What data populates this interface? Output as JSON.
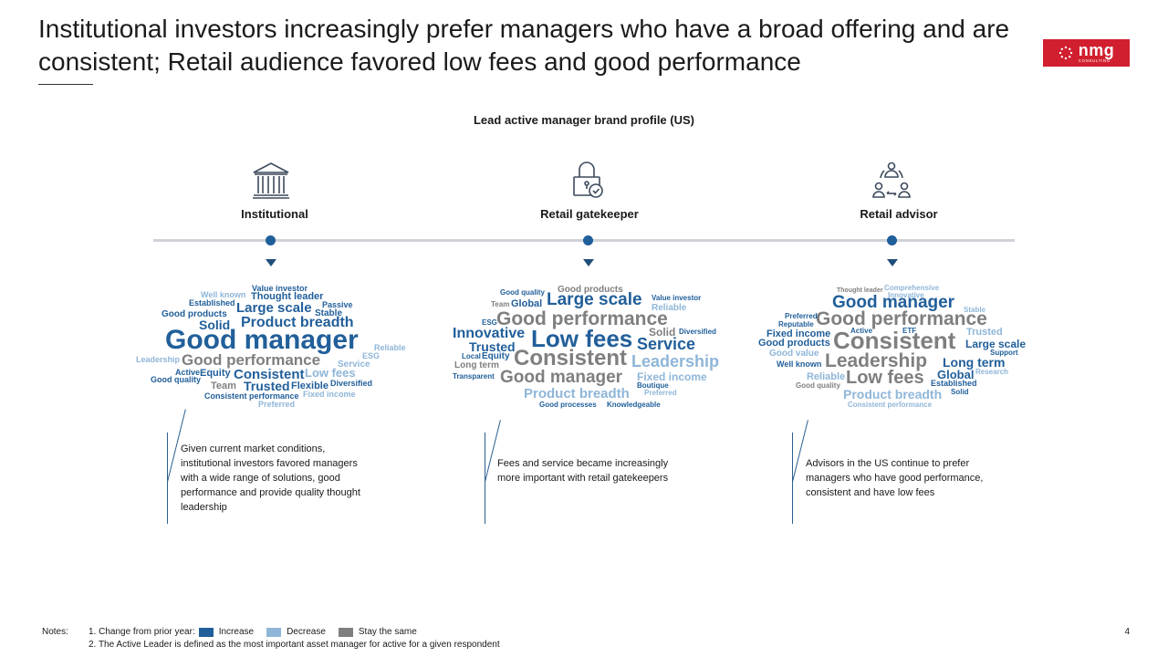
{
  "title": "Institutional investors increasingly prefer managers who have a broad offering and are consistent; Retail audience favored low fees and good performance",
  "logo": {
    "brand": "nmg",
    "sub": "CONSULTING"
  },
  "subtitle": "Lead active manager brand profile (US)",
  "colors": {
    "increase": "#215f9a",
    "decrease": "#8fb6d8",
    "same": "#7f7f7f",
    "accent": "#d11f2f"
  },
  "columns": [
    {
      "label": "Institutional",
      "icon": "bank-icon",
      "note": "Given current market conditions, institutional investors favored managers with a wide range of solutions, good performance and provide quality thought leadership",
      "words": [
        [
          "Value investor",
          "c1"
        ],
        [
          "Well known",
          "c2"
        ],
        [
          "Thought leader",
          "c1"
        ],
        [
          "Established",
          "c1"
        ],
        [
          "Passive",
          "c1"
        ],
        [
          "Good products",
          "c1"
        ],
        [
          "Large scale",
          "c1"
        ],
        [
          "Stable",
          "c1"
        ],
        [
          "Solid",
          "c1"
        ],
        [
          "Product breadth",
          "c1"
        ],
        [
          "Good manager",
          "c1"
        ],
        [
          "Reliable",
          "c2"
        ],
        [
          "Leadership",
          "c2"
        ],
        [
          "Good performance",
          "c3"
        ],
        [
          "ESG",
          "c2"
        ],
        [
          "Active",
          "c1"
        ],
        [
          "Equity",
          "c1"
        ],
        [
          "Consistent",
          "c1"
        ],
        [
          "Service",
          "c2"
        ],
        [
          "Good quality",
          "c1"
        ],
        [
          "Low fees",
          "c2"
        ],
        [
          "Team",
          "c3"
        ],
        [
          "Trusted",
          "c1"
        ],
        [
          "Flexible",
          "c1"
        ],
        [
          "Diversified",
          "c1"
        ],
        [
          "Consistent performance",
          "c1"
        ],
        [
          "Fixed income",
          "c2"
        ],
        [
          "Preferred",
          "c2"
        ]
      ]
    },
    {
      "label": "Retail gatekeeper",
      "icon": "lock-icon",
      "note": "Fees and service became increasingly more important with retail gatekeepers",
      "words": [
        [
          "Good quality",
          "c1"
        ],
        [
          "Good products",
          "c3"
        ],
        [
          "Team",
          "c3"
        ],
        [
          "Global",
          "c1"
        ],
        [
          "Large scale",
          "c1"
        ],
        [
          "Value investor",
          "c1"
        ],
        [
          "Reliable",
          "c2"
        ],
        [
          "ESG",
          "c1"
        ],
        [
          "Good performance",
          "c3"
        ],
        [
          "Solid",
          "c3"
        ],
        [
          "Diversified",
          "c1"
        ],
        [
          "Innovative",
          "c1"
        ],
        [
          "Trusted",
          "c1"
        ],
        [
          "Low fees",
          "c1"
        ],
        [
          "Service",
          "c1"
        ],
        [
          "Local",
          "c1"
        ],
        [
          "Equity",
          "c1"
        ],
        [
          "Consistent",
          "c3"
        ],
        [
          "Leadership",
          "c2"
        ],
        [
          "Long term",
          "c3"
        ],
        [
          "Transparent",
          "c1"
        ],
        [
          "Good manager",
          "c3"
        ],
        [
          "Fixed income",
          "c2"
        ],
        [
          "Boutique",
          "c1"
        ],
        [
          "Preferred",
          "c2"
        ],
        [
          "Product breadth",
          "c2"
        ],
        [
          "Good processes",
          "c1"
        ],
        [
          "Knowledgeable",
          "c1"
        ]
      ]
    },
    {
      "label": "Retail advisor",
      "icon": "people-cycle-icon",
      "note": "Advisors in the US continue to prefer managers who have good performance, consistent and have low fees",
      "words": [
        [
          "Thought leader",
          "c3"
        ],
        [
          "Comprehensive",
          "c2"
        ],
        [
          "Innovative",
          "c2"
        ],
        [
          "Good manager",
          "c1"
        ],
        [
          "Stable",
          "c2"
        ],
        [
          "Preferred",
          "c1"
        ],
        [
          "Good performance",
          "c3"
        ],
        [
          "Reputable",
          "c1"
        ],
        [
          "Active",
          "c1"
        ],
        [
          "ETF",
          "c1"
        ],
        [
          "Trusted",
          "c2"
        ],
        [
          "Fixed income",
          "c1"
        ],
        [
          "Consistent",
          "c3"
        ],
        [
          "Good products",
          "c1"
        ],
        [
          "Large scale",
          "c1"
        ],
        [
          "Good value",
          "c2"
        ],
        [
          "Support",
          "c1"
        ],
        [
          "Leadership",
          "c3"
        ],
        [
          "Well known",
          "c1"
        ],
        [
          "Long term",
          "c1"
        ],
        [
          "Research",
          "c2"
        ],
        [
          "Reliable",
          "c2"
        ],
        [
          "Low fees",
          "c3"
        ],
        [
          "Global",
          "c1"
        ],
        [
          "Good quality",
          "c3"
        ],
        [
          "Established",
          "c1"
        ],
        [
          "Product breadth",
          "c2"
        ],
        [
          "Solid",
          "c1"
        ],
        [
          "Consistent performance",
          "c2"
        ]
      ]
    }
  ],
  "footer": {
    "notes_label": "Notes:",
    "note1_prefix": "1.  Change from prior year:",
    "legend": [
      {
        "label": "Increase",
        "color": "#215f9a"
      },
      {
        "label": "Decrease",
        "color": "#8fb6d8"
      },
      {
        "label": "Stay the same",
        "color": "#7f7f7f"
      }
    ],
    "note2": "2. The Active Leader is defined as the most important asset manager for active for a given respondent"
  },
  "page_number": "4"
}
